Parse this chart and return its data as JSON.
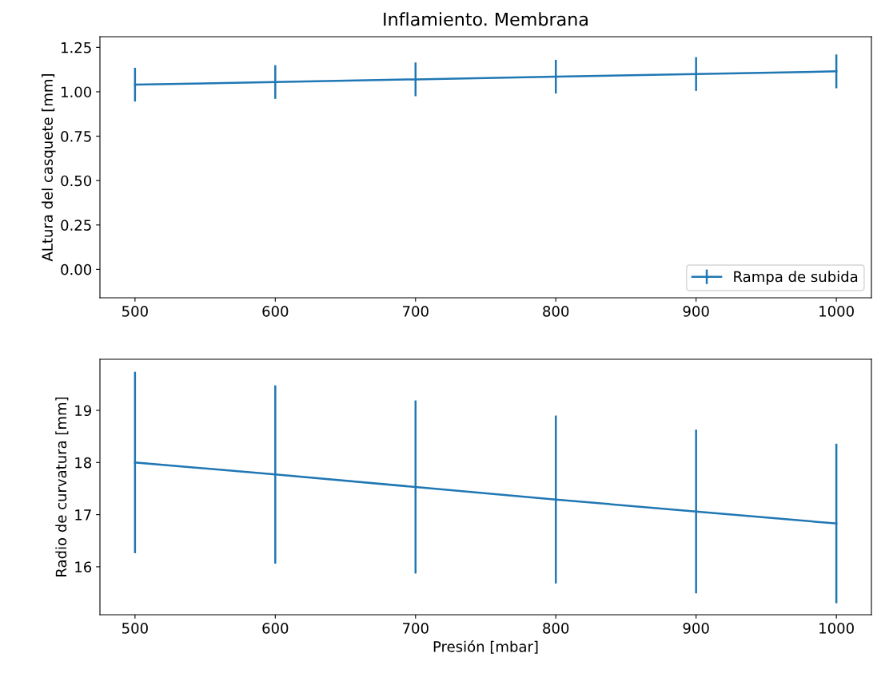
{
  "chart_data": [
    {
      "type": "line",
      "title": "Inflamiento. Membrana",
      "ylabel": "ALtura del casquete [mm]",
      "x": [
        500,
        600,
        700,
        800,
        900,
        1000
      ],
      "series": [
        {
          "name": "Rampa de subida",
          "color": "#1f77b4",
          "values": [
            1.04,
            1.055,
            1.07,
            1.085,
            1.1,
            1.115
          ],
          "errors": [
            0.095,
            0.095,
            0.095,
            0.095,
            0.095,
            0.095
          ]
        }
      ],
      "xlim": [
        475,
        1025
      ],
      "xticks": [
        500,
        600,
        700,
        800,
        900,
        1000
      ],
      "ylim": [
        -0.16,
        1.31
      ],
      "yticks": [
        {
          "value": 0,
          "label": "0.00"
        },
        0.25,
        {
          "value": 0.5,
          "label": "0.50"
        },
        0.75,
        {
          "value": 1,
          "label": "1.00"
        },
        1.25
      ],
      "legend": "lower right",
      "grid": false
    },
    {
      "type": "line",
      "xlabel": "Presión [mbar]",
      "ylabel": "Radio de curvatura [mm]",
      "x": [
        500,
        600,
        700,
        800,
        900,
        1000
      ],
      "series": [
        {
          "color": "#1f77b4",
          "values": [
            18.0,
            17.77,
            17.53,
            17.29,
            17.06,
            16.83
          ],
          "errors": [
            1.74,
            1.71,
            1.66,
            1.61,
            1.57,
            1.53
          ]
        }
      ],
      "xlim": [
        475,
        1025
      ],
      "xticks": [
        500,
        600,
        700,
        800,
        900,
        1000
      ],
      "ylim": [
        15.08,
        19.98
      ],
      "yticks": [
        16,
        17,
        18,
        19
      ],
      "grid": false
    }
  ]
}
